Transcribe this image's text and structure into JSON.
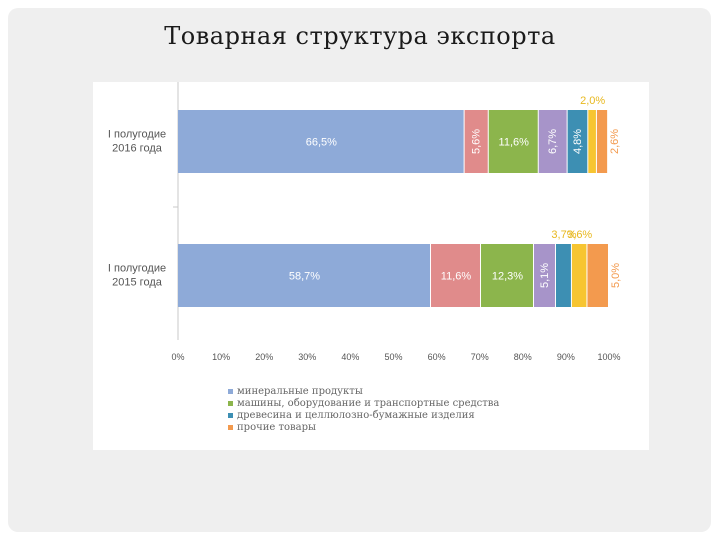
{
  "slide": {
    "title": "Товарная структура экспорта"
  },
  "chart_data": {
    "type": "bar",
    "orientation": "horizontal",
    "stacked": true,
    "categories": [
      "I полугодие 2016 года",
      "I полугодие 2015 года"
    ],
    "series": [
      {
        "name": "минеральные продукты",
        "color": "#8eaad8",
        "values": [
          66.5,
          58.7
        ],
        "labels": [
          "66,5%",
          "58,7%"
        ]
      },
      {
        "name": "",
        "color": "#e08b8b",
        "values": [
          5.6,
          11.6
        ],
        "labels": [
          "5,6%",
          "11,6%"
        ]
      },
      {
        "name": "машины, оборудование и транспортные средства",
        "color": "#8cb54c",
        "values": [
          11.6,
          12.3
        ],
        "labels": [
          "11,6%",
          "12,3%"
        ]
      },
      {
        "name": "",
        "color": "#a794c9",
        "values": [
          6.7,
          5.1
        ],
        "labels": [
          "6,7%",
          "5,1%"
        ]
      },
      {
        "name": "древесина и целлюлозно-бумажные изделия",
        "color": "#3d8fb3",
        "values": [
          4.8,
          3.7
        ],
        "labels": [
          "4,8%",
          "3,7%"
        ]
      },
      {
        "name": "",
        "color": "#f7c531",
        "values": [
          2.0,
          3.6
        ],
        "labels": [
          "2,0%",
          "3,6%"
        ]
      },
      {
        "name": "прочие товары",
        "color": "#f39a4e",
        "values": [
          2.6,
          5.0
        ],
        "labels": [
          "2,6%",
          "5,0%"
        ]
      }
    ],
    "x_ticks": [
      "0%",
      "10%",
      "20%",
      "30%",
      "40%",
      "50%",
      "60%",
      "70%",
      "80%",
      "90%",
      "100%"
    ],
    "xlim": [
      0,
      100
    ],
    "grid": false,
    "legend_position": "bottom-left"
  }
}
